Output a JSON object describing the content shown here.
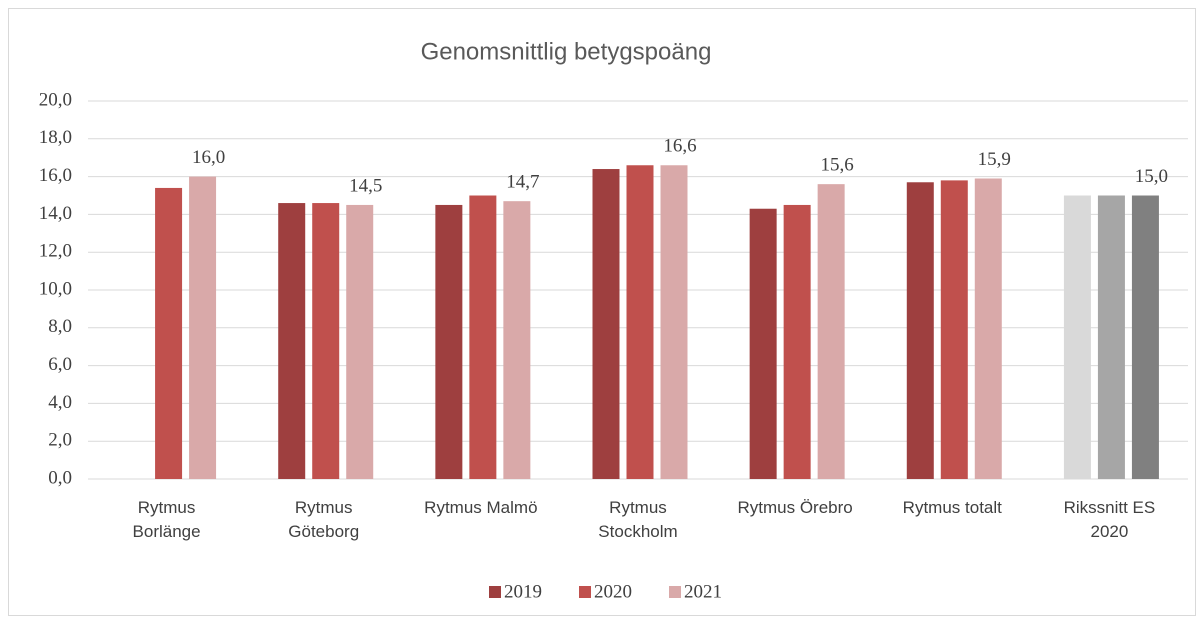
{
  "chart_data": {
    "type": "bar",
    "title": "Genomsnittlig betygspoäng",
    "categories": [
      "Rytmus\nBorlänge",
      "Rytmus\nGöteborg",
      "Rytmus Malmö",
      "Rytmus\nStockholm",
      "Rytmus Örebro",
      "Rytmus totalt",
      "Rikssnitt ES\n2020"
    ],
    "series": [
      {
        "name": "2019",
        "color": "#9e3f3f",
        "colors": [
          "#9e3f3f",
          "#9e3f3f",
          "#9e3f3f",
          "#9e3f3f",
          "#9e3f3f",
          "#9e3f3f",
          "#d9d9d9"
        ],
        "values": [
          null,
          14.6,
          14.5,
          16.4,
          14.3,
          15.7,
          15.0
        ]
      },
      {
        "name": "2020",
        "color": "#c0504d",
        "colors": [
          "#c0504d",
          "#c0504d",
          "#c0504d",
          "#c0504d",
          "#c0504d",
          "#c0504d",
          "#a6a6a6"
        ],
        "values": [
          15.4,
          14.6,
          15.0,
          16.6,
          14.5,
          15.8,
          15.0
        ]
      },
      {
        "name": "2021",
        "color": "#d9a9a9",
        "colors": [
          "#d9a9a9",
          "#d9a9a9",
          "#d9a9a9",
          "#d9a9a9",
          "#d9a9a9",
          "#d9a9a9",
          "#808080"
        ],
        "values": [
          16.0,
          14.5,
          14.7,
          16.6,
          15.6,
          15.9,
          15.0
        ],
        "value_labels": [
          "16,0",
          "14,5",
          "14,7",
          "16,6",
          "15,6",
          "15,9",
          "15,0"
        ]
      }
    ],
    "ylim": [
      0,
      20
    ],
    "yticks": [
      {
        "value": 0,
        "label": "0,0"
      },
      {
        "value": 2,
        "label": "2,0"
      },
      {
        "value": 4,
        "label": "4,0"
      },
      {
        "value": 6,
        "label": "6,0"
      },
      {
        "value": 8,
        "label": "8,0"
      },
      {
        "value": 10,
        "label": "10,0"
      },
      {
        "value": 12,
        "label": "12,0"
      },
      {
        "value": 14,
        "label": "14,0"
      },
      {
        "value": 16,
        "label": "16,0"
      },
      {
        "value": 18,
        "label": "18,0"
      },
      {
        "value": 20,
        "label": "20,0"
      }
    ],
    "grid": true,
    "legend": "bottom"
  }
}
